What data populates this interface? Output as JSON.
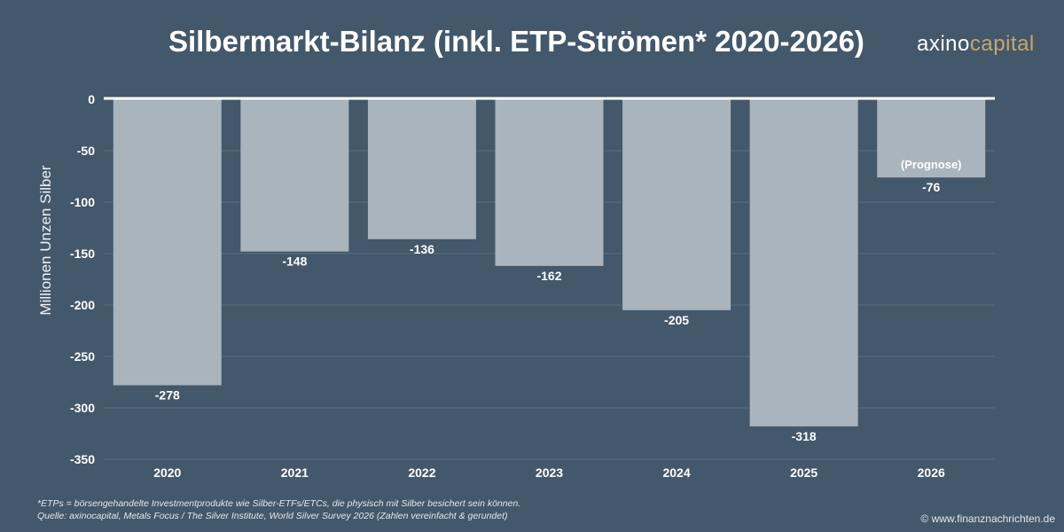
{
  "header": {
    "title": "Silbermarkt-Bilanz (inkl. ETP-Strömen* 2020-2026)",
    "logo_part1": "axino",
    "logo_part2": "capital"
  },
  "chart_data": {
    "type": "bar",
    "title": "Silbermarkt-Bilanz (inkl. ETP-Strömen* 2020-2026)",
    "xlabel": "",
    "ylabel": "Millionen Unzen Silber",
    "categories": [
      "2020",
      "2021",
      "2022",
      "2023",
      "2024",
      "2025",
      "2026"
    ],
    "values": [
      -278,
      -148,
      -136,
      -162,
      -205,
      -318,
      -76
    ],
    "ylim": [
      -350,
      0
    ],
    "yticks": [
      0,
      -50,
      -100,
      -150,
      -200,
      -250,
      -300,
      -350
    ],
    "grid": true,
    "annotations": [
      {
        "category": "2026",
        "text": "(Prognose)"
      }
    ],
    "colors": {
      "bar": "#aab4bd",
      "background": "#43586b",
      "baseline": "#ffffff",
      "grid": "#5b6e7f"
    }
  },
  "footer": {
    "note": "*ETPs = börsengehandelte Investmentprodukte wie Silber-ETFs/ETCs, die physisch mit Silber besichert sein können.",
    "source": "Quelle: axinocapital, Metals Focus / The Silver Institute, World Silver Survey 2026 (Zahlen vereinfacht & gerundet)",
    "credit": "© www.finanznachrichten.de"
  }
}
